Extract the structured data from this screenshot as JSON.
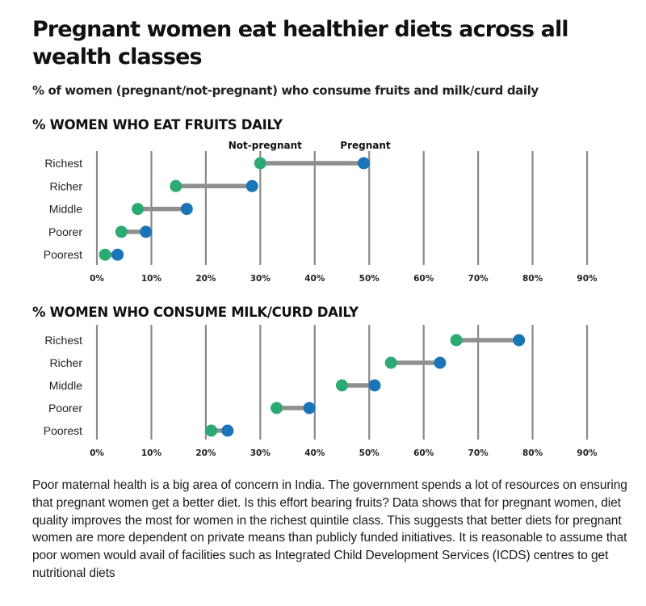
{
  "title": "Pregnant women eat healthier diets across all wealth classes",
  "subtitle": "% of women (pregnant/not-pregnant) who consume fruits and milk/curd daily",
  "colors": {
    "not_pregnant": "#2baa73",
    "pregnant": "#1a74b8",
    "connector": "#8f8f8f",
    "grid": "#8a8a8a"
  },
  "chart_data": [
    {
      "type": "dumbbell",
      "title": "% WOMEN WHO EAT FRUITS DAILY",
      "categories": [
        "Richest",
        "Richer",
        "Middle",
        "Poorer",
        "Poorest"
      ],
      "series": [
        {
          "name": "Not-pregnant",
          "values": [
            30,
            14.5,
            7.5,
            4.5,
            1.5
          ]
        },
        {
          "name": "Pregnant",
          "values": [
            49,
            28.5,
            16.5,
            9,
            3.8
          ]
        }
      ],
      "xlim": [
        0,
        90
      ],
      "xticks": [
        "0%",
        "10%",
        "20%",
        "30%",
        "40%",
        "50%",
        "60%",
        "70%",
        "80%",
        "90%"
      ],
      "grid": true,
      "legend_placement": "top, above points"
    },
    {
      "type": "dumbbell",
      "title": "% WOMEN WHO CONSUME MILK/CURD DAILY",
      "categories": [
        "Richest",
        "Richer",
        "Middle",
        "Poorer",
        "Poorest"
      ],
      "series": [
        {
          "values": [
            66,
            54,
            45,
            33,
            21
          ]
        },
        {
          "values": [
            77.5,
            63,
            51,
            39,
            24
          ]
        }
      ],
      "xlim": [
        0,
        90
      ],
      "xticks": [
        "0%",
        "10%",
        "20%",
        "30%",
        "40%",
        "50%",
        "60%",
        "70%",
        "80%",
        "90%"
      ],
      "grid": true
    }
  ],
  "caption": "Poor maternal health is a big area of concern in India. The government spends a lot of resources on ensuring that pregnant women get a better diet. Is this effort bearing fruits? Data shows that for pregnant women, diet quality improves the most for women in the richest quintile class. This suggests that better diets for pregnant women are more dependent on private means than publicly funded initiatives. It is reasonable to assume that poor women would avail of facilities such as Integrated Child Development Services (ICDS) centres to get nutritional diets"
}
